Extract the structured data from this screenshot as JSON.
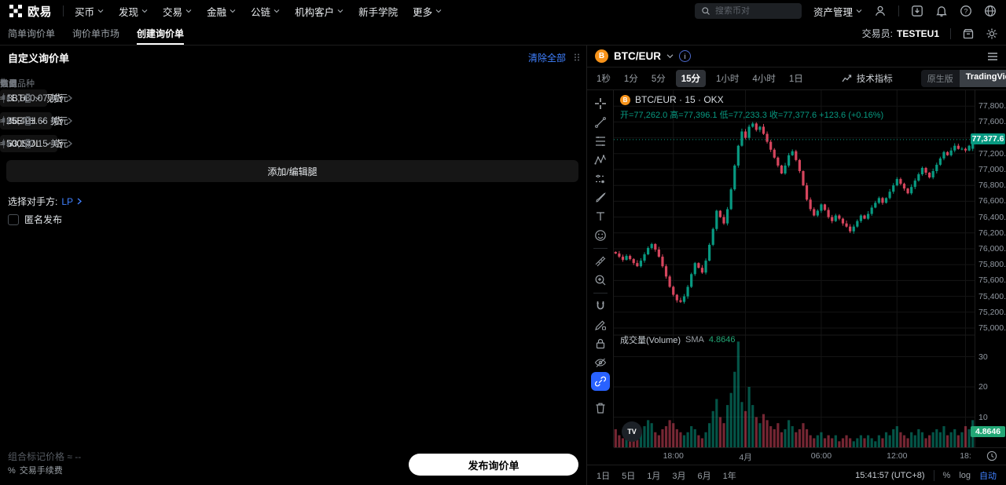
{
  "topnav": {
    "logo_text": "欧易",
    "items": [
      {
        "label": "买币",
        "chevron": true
      },
      {
        "label": "发现",
        "chevron": true
      },
      {
        "label": "交易",
        "chevron": true
      },
      {
        "label": "金融",
        "chevron": true
      },
      {
        "label": "公链",
        "chevron": true
      },
      {
        "label": "机构客户",
        "chevron": true
      },
      {
        "label": "新手学院",
        "chevron": false
      },
      {
        "label": "更多",
        "chevron": true
      }
    ],
    "search_placeholder": "搜索币对",
    "asset_menu_label": "资产管理"
  },
  "subnav": {
    "tabs": [
      {
        "label": "简单询价单",
        "active": false
      },
      {
        "label": "询价单市场",
        "active": false
      },
      {
        "label": "创建询价单",
        "active": true
      }
    ],
    "trader_label": "交易员:",
    "trader_value": "TESTEU1"
  },
  "rfq": {
    "title": "自定义询价单",
    "clear_all_label": "清除全部",
    "headers": {
      "num": "#",
      "side": "方向",
      "pair": "交易品种",
      "type": "类型",
      "amount": "数量",
      "value": "估值"
    },
    "legs": [
      {
        "num": "1",
        "side": "买",
        "side_color": "green",
        "pair": "BTC/EUR 现货",
        "type": "EUR",
        "amount": "1",
        "unit": "BTC",
        "value": "≈ 83,560.07 美元"
      },
      {
        "num": "2",
        "side": "卖",
        "side_color": "red",
        "pair": "ETH/EUR 现货",
        "type": "EUR",
        "amount": "25",
        "unit": "ETH",
        "value": "≈ 46,421.66 美元"
      },
      {
        "num": "3",
        "side": "买",
        "side_color": "green",
        "pair": "SOL/EUR 现货",
        "type": "EUR",
        "amount": "500",
        "unit": "SOL",
        "value": "≈ 63,147.15 美元"
      }
    ],
    "add_legs_label": "添加/编辑腿",
    "counterparty_label": "选择对手方:",
    "counterparty_value": "LP",
    "anonymous_label": "匿名发布",
    "mark_price_label": "组合标记价格",
    "mark_price_value": "≈ --",
    "fee_pct_symbol": "%",
    "fee_label": "交易手续费",
    "submit_label": "发布询价单"
  },
  "chart": {
    "symbol": "BTC/EUR",
    "intervals": [
      "1秒",
      "1分",
      "5分",
      "15分",
      "1小时",
      "4小时",
      "1日"
    ],
    "active_interval": "15分",
    "indicators_label": "技术指标",
    "mode_toggle": {
      "native": "原生版",
      "tradingview": "TradingView",
      "active": "TradingView"
    },
    "legend_title": "BTC/EUR · 15 · OKX",
    "legend_ohlc": "开=77,262.0  高=77,396.1  低=77,233.3  收=77,377.6  +123.6 (+0.16%)",
    "current_price_label": "77,377.6",
    "volume_title": "成交量(Volume)",
    "volume_sma_label": "SMA",
    "volume_sma_value": "4.8646",
    "footer_ranges": [
      "1日",
      "5日",
      "1月",
      "3月",
      "6月",
      "1年"
    ],
    "footer_time": "15:41:57 (UTC+8)",
    "footer_pct": "%",
    "footer_log": "log",
    "footer_auto": "自动",
    "colors": {
      "up": "#089981",
      "down": "#d6455d",
      "accent_blue": "#4080ff",
      "btc_orange": "#f7931a"
    }
  },
  "chart_data": {
    "type": "candlestick",
    "symbol": "BTC/EUR",
    "venue": "OKX",
    "interval": "15m",
    "last_candle": {
      "open": 77262.0,
      "high": 77396.1,
      "low": 77233.3,
      "close": 77377.6,
      "change": 123.6,
      "change_pct": "+0.16%"
    },
    "price_axis": {
      "min": 75000,
      "max": 77800,
      "step": 200
    },
    "volume_axis_ticks": [
      30,
      20,
      10
    ],
    "volume_sma": 4.8646,
    "time_labels": [
      {
        "label": "18:00",
        "index": 16
      },
      {
        "label": "4月",
        "index": 36
      },
      {
        "label": "06:00",
        "index": 57
      },
      {
        "label": "12:00",
        "index": 78
      },
      {
        "label": "18:",
        "index": 97
      }
    ],
    "closes": [
      75940,
      75900,
      75860,
      75910,
      75870,
      75820,
      75780,
      75850,
      75930,
      76010,
      76060,
      75990,
      75900,
      75780,
      75650,
      75520,
      75420,
      75350,
      75330,
      75400,
      75520,
      75680,
      75820,
      75760,
      75700,
      75850,
      76050,
      76250,
      76480,
      76400,
      76320,
      76500,
      76750,
      77050,
      77300,
      77480,
      77400,
      77540,
      77580,
      77500,
      77540,
      77450,
      77350,
      77250,
      77150,
      77050,
      76950,
      77050,
      77180,
      77230,
      77120,
      76980,
      76800,
      76620,
      76500,
      76420,
      76480,
      76560,
      76490,
      76400,
      76350,
      76420,
      76380,
      76320,
      76280,
      76220,
      76280,
      76350,
      76420,
      76380,
      76440,
      76520,
      76580,
      76640,
      76580,
      76640,
      76720,
      76800,
      76880,
      76820,
      76760,
      76700,
      76780,
      76860,
      76940,
      77020,
      76960,
      76900,
      76980,
      77060,
      77140,
      77220,
      77180,
      77240,
      77300,
      77260,
      77262,
      77240,
      77300,
      77377.6
    ],
    "volumes": [
      6,
      4,
      3,
      5,
      4,
      3,
      4,
      5,
      7,
      9,
      8,
      5,
      4,
      6,
      7,
      9,
      8,
      6,
      5,
      4,
      5,
      7,
      6,
      4,
      3,
      5,
      8,
      12,
      16,
      10,
      8,
      14,
      18,
      25,
      35,
      15,
      12,
      20,
      14,
      10,
      8,
      11,
      9,
      7,
      6,
      8,
      5,
      6,
      9,
      7,
      5,
      6,
      8,
      6,
      4,
      3,
      4,
      5,
      3,
      4,
      3,
      4,
      2,
      3,
      4,
      3,
      2,
      3,
      4,
      3,
      4,
      3,
      2,
      4,
      3,
      5,
      4,
      6,
      7,
      5,
      4,
      3,
      5,
      4,
      6,
      5,
      3,
      4,
      5,
      6,
      5,
      7,
      4,
      5,
      6,
      4,
      5,
      7,
      6,
      9
    ]
  }
}
